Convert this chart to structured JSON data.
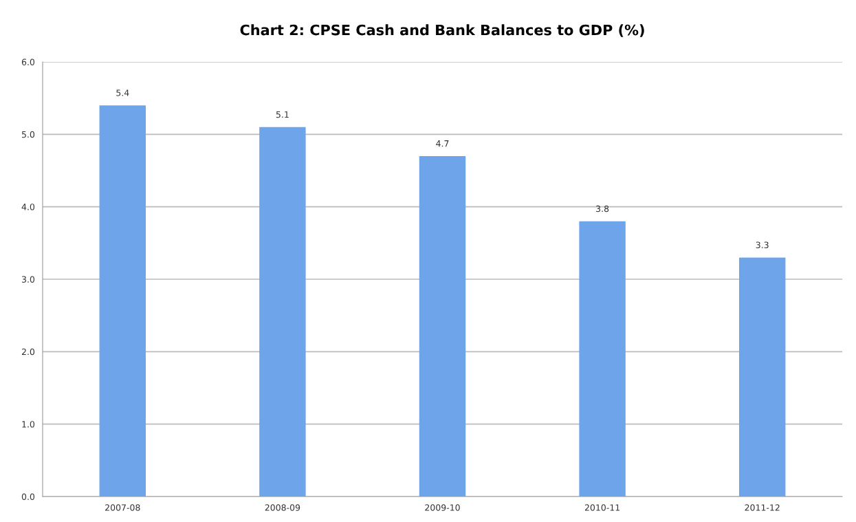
{
  "chart_data": {
    "type": "bar",
    "title": "Chart 2: CPSE Cash and Bank Balances to GDP (%)",
    "categories": [
      "2007-08",
      "2008-09",
      "2009-10",
      "2010-11",
      "2011-12"
    ],
    "values": [
      5.4,
      5.1,
      4.7,
      3.8,
      3.3
    ],
    "color": "#6ea5ea",
    "ylim": [
      0,
      6
    ],
    "yticks": [
      {
        "value": 0,
        "label": "0.0"
      },
      {
        "value": 1,
        "label": "1.0"
      },
      {
        "value": 2,
        "label": "2.0"
      },
      {
        "value": 3,
        "label": "3.0"
      },
      {
        "value": 4,
        "label": "4.0"
      },
      {
        "value": 5,
        "label": "5.0"
      },
      {
        "value": 6,
        "label": "6.0"
      }
    ],
    "grid": "y",
    "data_labels": true
  }
}
